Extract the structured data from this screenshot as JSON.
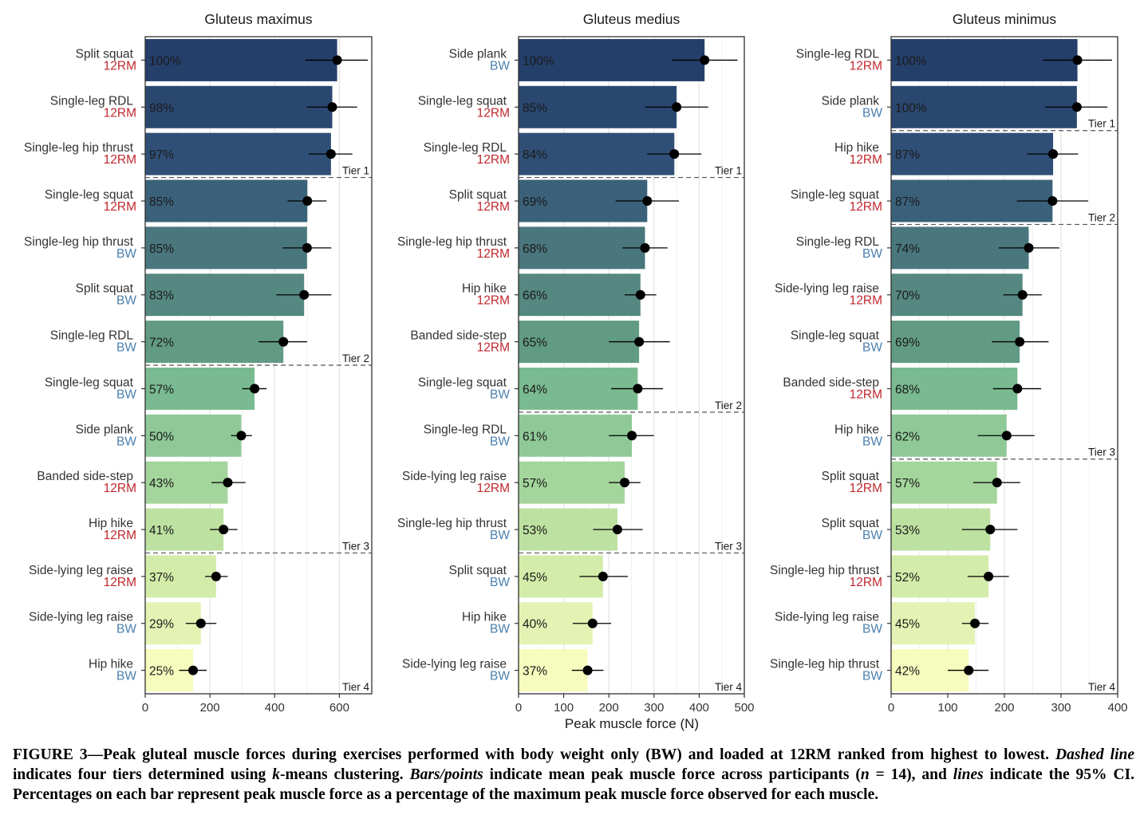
{
  "figure": {
    "xlabel": "Peak muscle force (N)",
    "condition_colors": {
      "12RM": "#c0272d",
      "BW": "#4a7fae"
    }
  },
  "chart_data": [
    {
      "type": "bar",
      "title": "Gluteus maximus",
      "orientation": "horizontal",
      "xlim": [
        0,
        700
      ],
      "xticks": [
        0,
        200,
        400,
        600
      ],
      "grid": true,
      "bars": [
        {
          "exercise": "Split squat",
          "condition": "12RM",
          "value": 593,
          "ci": [
            495,
            688
          ],
          "pct": "100%",
          "tier": 1
        },
        {
          "exercise": "Single-leg RDL",
          "condition": "12RM",
          "value": 578,
          "ci": [
            500,
            655
          ],
          "pct": "98%",
          "tier": 1
        },
        {
          "exercise": "Single-leg hip thrust",
          "condition": "12RM",
          "value": 574,
          "ci": [
            505,
            640
          ],
          "pct": "97%",
          "tier": 1
        },
        {
          "exercise": "Single-leg squat",
          "condition": "12RM",
          "value": 501,
          "ci": [
            440,
            560
          ],
          "pct": "85%",
          "tier": 2
        },
        {
          "exercise": "Single-leg hip thrust",
          "condition": "BW",
          "value": 500,
          "ci": [
            425,
            575
          ],
          "pct": "85%",
          "tier": 2
        },
        {
          "exercise": "Split squat",
          "condition": "BW",
          "value": 491,
          "ci": [
            405,
            575
          ],
          "pct": "83%",
          "tier": 2
        },
        {
          "exercise": "Single-leg RDL",
          "condition": "BW",
          "value": 427,
          "ci": [
            350,
            500
          ],
          "pct": "72%",
          "tier": 2
        },
        {
          "exercise": "Single-leg squat",
          "condition": "BW",
          "value": 338,
          "ci": [
            300,
            375
          ],
          "pct": "57%",
          "tier": 3
        },
        {
          "exercise": "Side plank",
          "condition": "BW",
          "value": 297,
          "ci": [
            265,
            330
          ],
          "pct": "50%",
          "tier": 3
        },
        {
          "exercise": "Banded side-step",
          "condition": "12RM",
          "value": 255,
          "ci": [
            205,
            310
          ],
          "pct": "43%",
          "tier": 3
        },
        {
          "exercise": "Hip hike",
          "condition": "12RM",
          "value": 242,
          "ci": [
            200,
            285
          ],
          "pct": "41%",
          "tier": 3
        },
        {
          "exercise": "Side-lying leg raise",
          "condition": "12RM",
          "value": 219,
          "ci": [
            185,
            255
          ],
          "pct": "37%",
          "tier": 4
        },
        {
          "exercise": "Side-lying leg raise",
          "condition": "BW",
          "value": 172,
          "ci": [
            125,
            220
          ],
          "pct": "29%",
          "tier": 4
        },
        {
          "exercise": "Hip hike",
          "condition": "BW",
          "value": 148,
          "ci": [
            105,
            190
          ],
          "pct": "25%",
          "tier": 4
        }
      ],
      "tier_labels": [
        "Tier 1",
        "Tier 2",
        "Tier 3",
        "Tier 4"
      ]
    },
    {
      "type": "bar",
      "title": "Gluteus medius",
      "orientation": "horizontal",
      "xlim": [
        0,
        500
      ],
      "xticks": [
        0,
        100,
        200,
        300,
        400,
        500
      ],
      "grid": true,
      "bars": [
        {
          "exercise": "Side plank",
          "condition": "BW",
          "value": 412,
          "ci": [
            340,
            485
          ],
          "pct": "100%",
          "tier": 1
        },
        {
          "exercise": "Single-leg squat",
          "condition": "12RM",
          "value": 350,
          "ci": [
            280,
            420
          ],
          "pct": "85%",
          "tier": 1
        },
        {
          "exercise": "Single-leg RDL",
          "condition": "12RM",
          "value": 345,
          "ci": [
            285,
            405
          ],
          "pct": "84%",
          "tier": 1
        },
        {
          "exercise": "Split squat",
          "condition": "12RM",
          "value": 285,
          "ci": [
            215,
            355
          ],
          "pct": "69%",
          "tier": 2
        },
        {
          "exercise": "Single-leg hip thrust",
          "condition": "12RM",
          "value": 280,
          "ci": [
            230,
            330
          ],
          "pct": "68%",
          "tier": 2
        },
        {
          "exercise": "Hip hike",
          "condition": "12RM",
          "value": 270,
          "ci": [
            235,
            305
          ],
          "pct": "66%",
          "tier": 2
        },
        {
          "exercise": "Banded side-step",
          "condition": "12RM",
          "value": 267,
          "ci": [
            200,
            335
          ],
          "pct": "65%",
          "tier": 2
        },
        {
          "exercise": "Single-leg squat",
          "condition": "BW",
          "value": 264,
          "ci": [
            205,
            320
          ],
          "pct": "64%",
          "tier": 2
        },
        {
          "exercise": "Single-leg RDL",
          "condition": "BW",
          "value": 251,
          "ci": [
            200,
            300
          ],
          "pct": "61%",
          "tier": 3
        },
        {
          "exercise": "Side-lying leg raise",
          "condition": "12RM",
          "value": 235,
          "ci": [
            200,
            270
          ],
          "pct": "57%",
          "tier": 3
        },
        {
          "exercise": "Single-leg hip thrust",
          "condition": "BW",
          "value": 219,
          "ci": [
            165,
            275
          ],
          "pct": "53%",
          "tier": 3
        },
        {
          "exercise": "Split squat",
          "condition": "BW",
          "value": 187,
          "ci": [
            135,
            242
          ],
          "pct": "45%",
          "tier": 4
        },
        {
          "exercise": "Hip hike",
          "condition": "BW",
          "value": 164,
          "ci": [
            120,
            205
          ],
          "pct": "40%",
          "tier": 4
        },
        {
          "exercise": "Side-lying leg raise",
          "condition": "BW",
          "value": 153,
          "ci": [
            118,
            188
          ],
          "pct": "37%",
          "tier": 4
        }
      ],
      "tier_labels": [
        "Tier 1",
        "Tier 2",
        "Tier 3",
        "Tier 4"
      ]
    },
    {
      "type": "bar",
      "title": "Gluteus minimus",
      "orientation": "horizontal",
      "xlim": [
        0,
        400
      ],
      "xticks": [
        0,
        100,
        200,
        300,
        400
      ],
      "grid": true,
      "bars": [
        {
          "exercise": "Single-leg RDL",
          "condition": "12RM",
          "value": 329,
          "ci": [
            268,
            390
          ],
          "pct": "100%",
          "tier": 1
        },
        {
          "exercise": "Side plank",
          "condition": "BW",
          "value": 328,
          "ci": [
            272,
            382
          ],
          "pct": "100%",
          "tier": 1
        },
        {
          "exercise": "Hip hike",
          "condition": "12RM",
          "value": 286,
          "ci": [
            240,
            330
          ],
          "pct": "87%",
          "tier": 2
        },
        {
          "exercise": "Single-leg squat",
          "condition": "12RM",
          "value": 285,
          "ci": [
            222,
            348
          ],
          "pct": "87%",
          "tier": 2
        },
        {
          "exercise": "Single-leg RDL",
          "condition": "BW",
          "value": 243,
          "ci": [
            190,
            297
          ],
          "pct": "74%",
          "tier": 3
        },
        {
          "exercise": "Side-lying leg raise",
          "condition": "12RM",
          "value": 232,
          "ci": [
            198,
            266
          ],
          "pct": "70%",
          "tier": 3
        },
        {
          "exercise": "Single-leg squat",
          "condition": "BW",
          "value": 227,
          "ci": [
            178,
            278
          ],
          "pct": "69%",
          "tier": 3
        },
        {
          "exercise": "Banded side-step",
          "condition": "12RM",
          "value": 223,
          "ci": [
            180,
            265
          ],
          "pct": "68%",
          "tier": 3
        },
        {
          "exercise": "Hip hike",
          "condition": "BW",
          "value": 204,
          "ci": [
            153,
            253
          ],
          "pct": "62%",
          "tier": 3
        },
        {
          "exercise": "Split squat",
          "condition": "12RM",
          "value": 187,
          "ci": [
            145,
            228
          ],
          "pct": "57%",
          "tier": 4
        },
        {
          "exercise": "Split squat",
          "condition": "BW",
          "value": 175,
          "ci": [
            125,
            223
          ],
          "pct": "53%",
          "tier": 4
        },
        {
          "exercise": "Single-leg hip thrust",
          "condition": "12RM",
          "value": 172,
          "ci": [
            135,
            208
          ],
          "pct": "52%",
          "tier": 4
        },
        {
          "exercise": "Side-lying leg raise",
          "condition": "BW",
          "value": 148,
          "ci": [
            125,
            172
          ],
          "pct": "45%",
          "tier": 4
        },
        {
          "exercise": "Single-leg hip thrust",
          "condition": "BW",
          "value": 137,
          "ci": [
            100,
            172
          ],
          "pct": "42%",
          "tier": 4
        }
      ],
      "tier_labels": [
        "Tier 1",
        "Tier 2",
        "Tier 3",
        "Tier 4"
      ]
    }
  ],
  "caption": {
    "figure_label": "FIGURE 3",
    "sentence1": "—Peak gluteal muscle forces during exercises performed with body weight only (BW) and loaded at 12RM ranked from highest to lowest.",
    "dashed_term": "Dashed line",
    "sentence2a": " indicates four tiers determined using ",
    "k_term": "k",
    "sentence2b": "-means clustering.",
    "bars_term": "Bars/points",
    "sentence3a": " indicate mean peak muscle force across participants (",
    "n_term": "n",
    "sentence3b": " = 14), and ",
    "lines_term": "lines",
    "sentence3c": " indicate the 95% CI. Percentages on each bar represent peak muscle force as a percentage of the maximum peak muscle force observed for each muscle."
  }
}
